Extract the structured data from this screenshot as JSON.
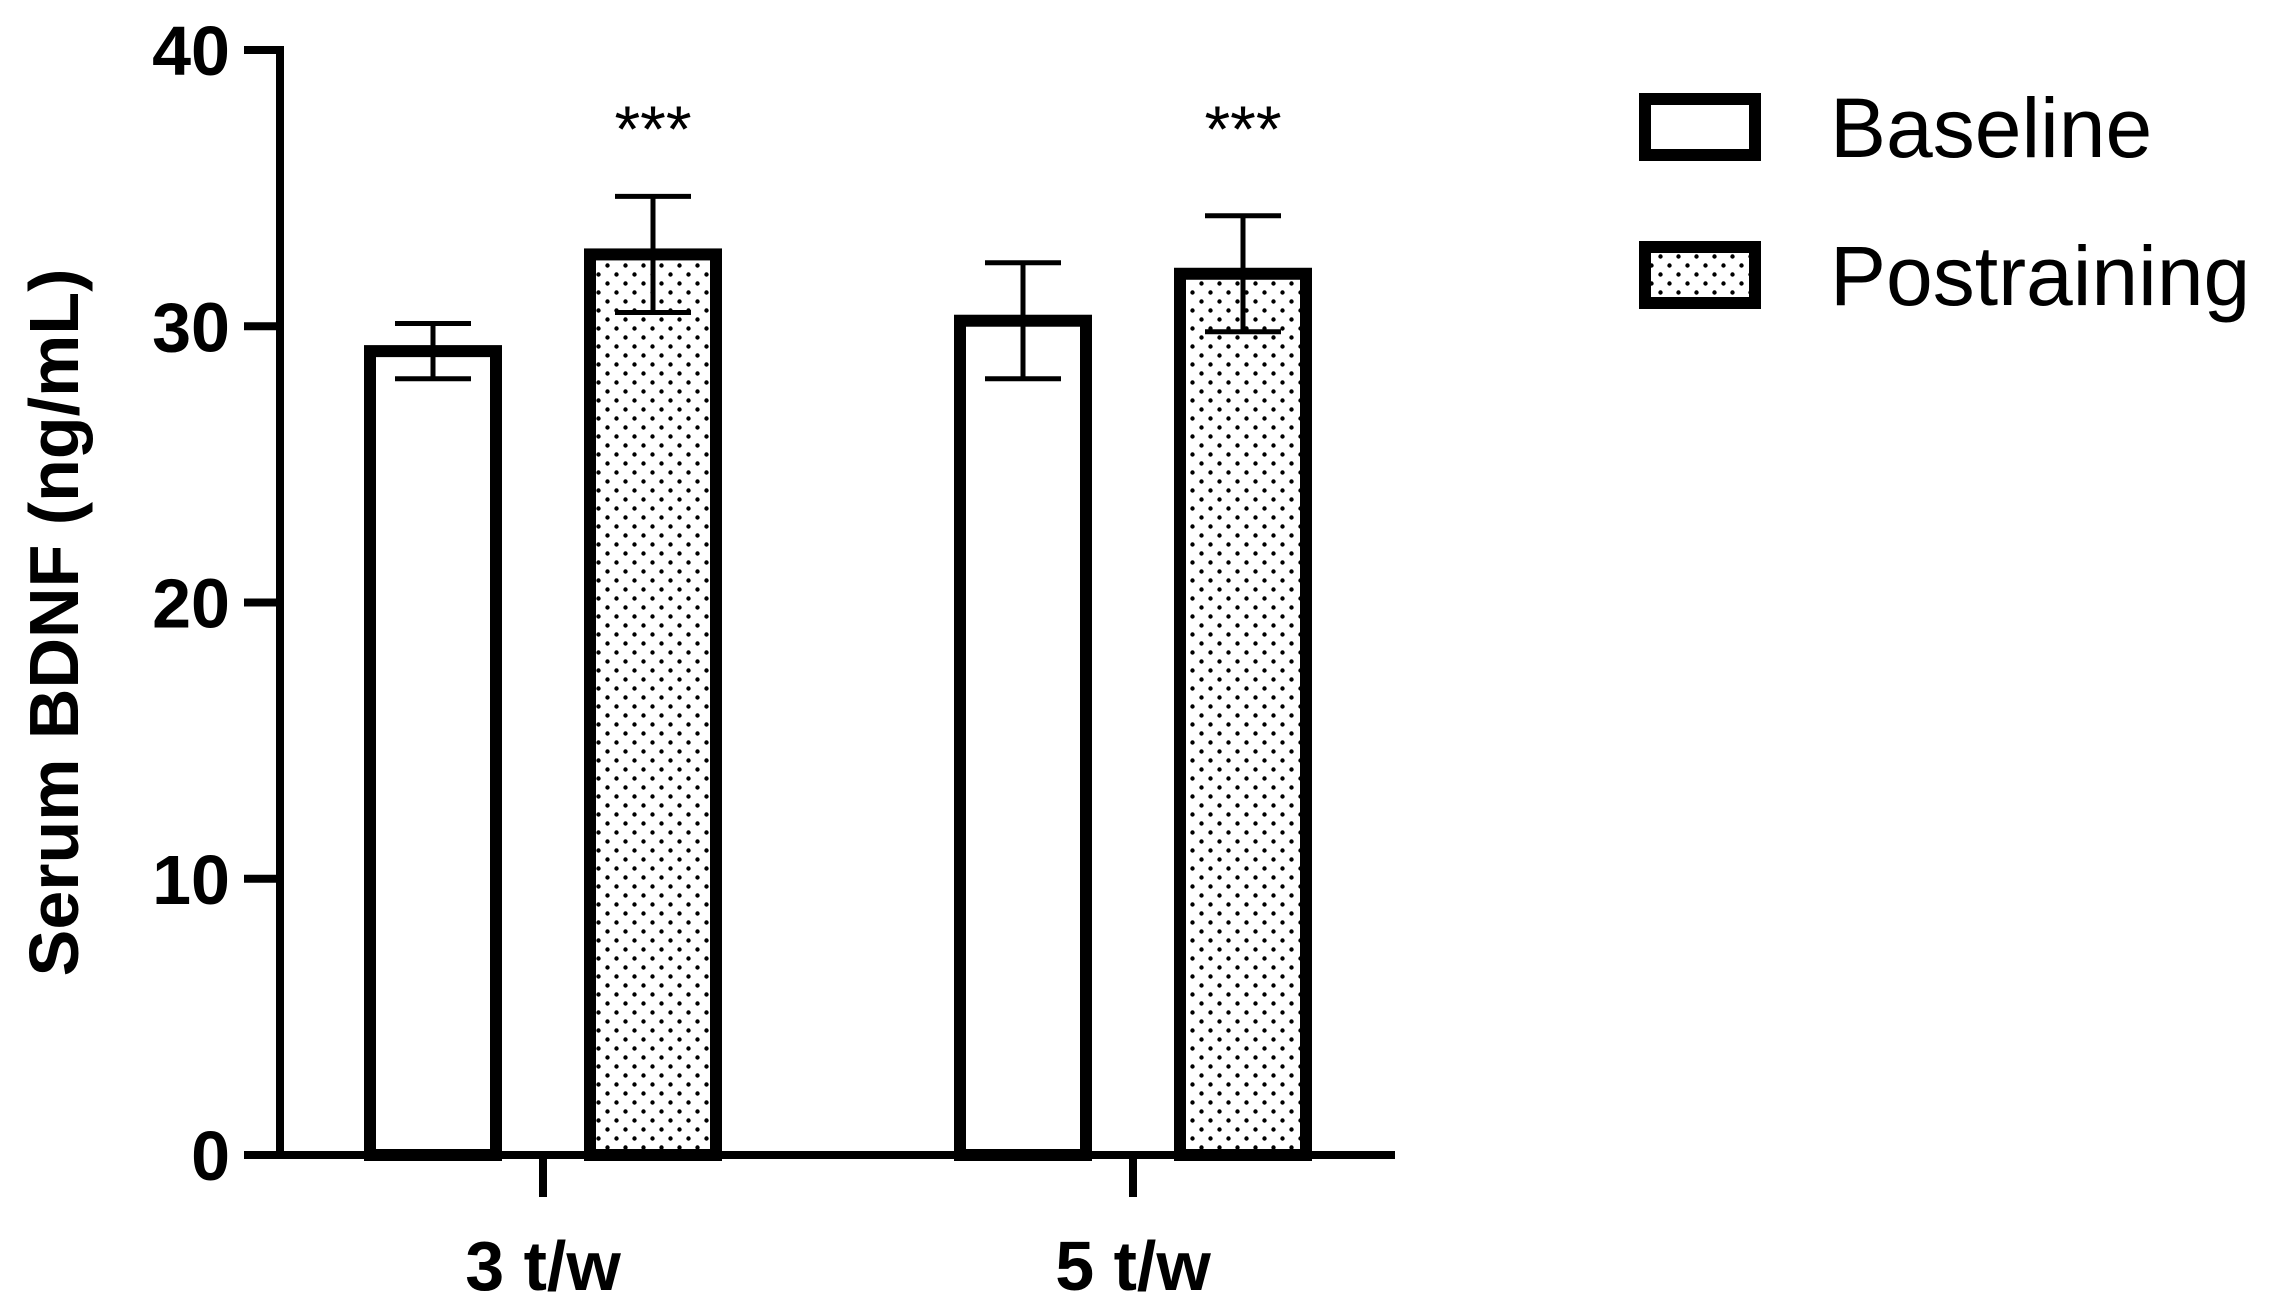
{
  "chart_data": {
    "type": "bar",
    "title": "",
    "xlabel": "",
    "ylabel": "Serum BDNF (ng/mL)",
    "ylim": [
      0,
      40
    ],
    "yticks": [
      "0",
      "10",
      "20",
      "30",
      "40"
    ],
    "categories": [
      "3 t/w",
      "5 t/w"
    ],
    "series": [
      {
        "name": "Baseline",
        "values": [
          29.1,
          30.2
        ],
        "errors": [
          1.0,
          2.1
        ],
        "fill": "plain"
      },
      {
        "name": "Postraining",
        "values": [
          32.6,
          31.9
        ],
        "errors": [
          2.1,
          2.1
        ],
        "fill": "dotted"
      }
    ],
    "annotations": [
      {
        "category": "3 t/w",
        "series": "Postraining",
        "text": "***"
      },
      {
        "category": "5 t/w",
        "series": "Postraining",
        "text": "***"
      }
    ],
    "legend_position": "top-right",
    "grid": false,
    "colors": {
      "outline": "#000000",
      "fill": "#ffffff",
      "dots": "#000000"
    }
  }
}
